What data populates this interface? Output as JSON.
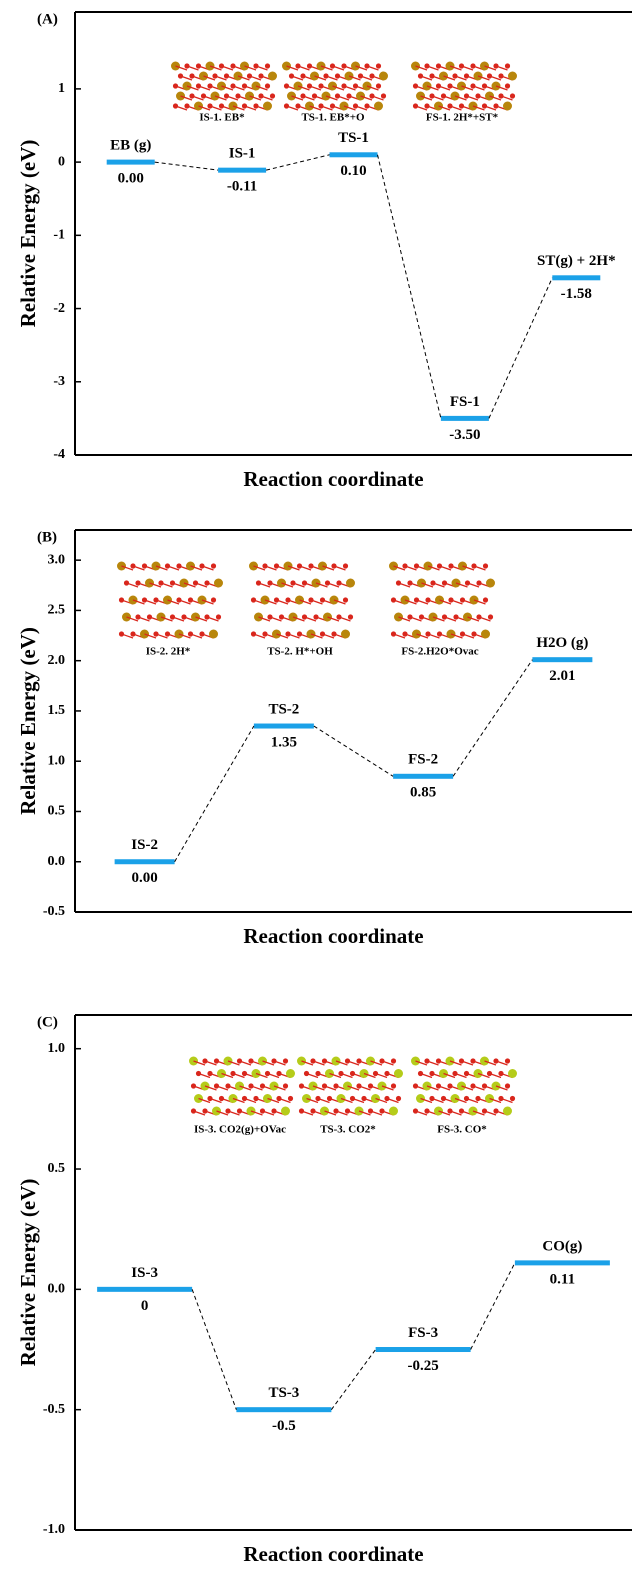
{
  "chart_data": [
    {
      "type": "energy",
      "panel_label": "(A)",
      "ylabel": "Relative Energy (eV)",
      "xlabel": "Reaction coordinate",
      "categories": [
        "EB (g)",
        "IS-1",
        "TS-1",
        "FS-1",
        "ST(g) + 2H*"
      ],
      "values": [
        0,
        -0.11,
        0.1,
        -3.5,
        -1.58
      ],
      "value_labels": [
        "0.00",
        "-0.11",
        "0.10",
        "-3.50",
        "-1.58"
      ],
      "color": "#1ba1e8",
      "ylim": [
        -4,
        2.05
      ],
      "yticks": [
        -4,
        -3,
        -2,
        -1,
        0,
        1
      ],
      "insets": [
        {
          "caption": "IS-1. EB*"
        },
        {
          "caption": "TS-1. EB*+O"
        },
        {
          "caption": "FS-1. 2H*+ST*"
        }
      ]
    },
    {
      "type": "energy",
      "panel_label": "(B)",
      "ylabel": "Relative Energy (eV)",
      "xlabel": "Reaction coordinate",
      "categories": [
        "IS-2",
        "TS-2",
        "FS-2",
        "H2O (g)"
      ],
      "values": [
        0,
        1.35,
        0.85,
        2.01
      ],
      "value_labels": [
        "0.00",
        "1.35",
        "0.85",
        "2.01"
      ],
      "color": "#1ba1e8",
      "ylim": [
        -0.5,
        3.3
      ],
      "yticks": [
        -0.5,
        {
          "value": 0,
          "label": "0.0"
        },
        0.5,
        {
          "value": 1,
          "label": "1.0"
        },
        1.5,
        {
          "value": 2,
          "label": "2.0"
        },
        2.5,
        {
          "value": 3,
          "label": "3.0"
        }
      ],
      "insets": [
        {
          "caption": "IS-2. 2H*"
        },
        {
          "caption": "TS-2. H*+OH"
        },
        {
          "caption": "FS-2.H2O*Ovac"
        }
      ]
    },
    {
      "type": "energy",
      "panel_label": "(C)",
      "ylabel": "Relative Energy (eV)",
      "xlabel": "Reaction coordinate",
      "categories": [
        "IS-3",
        "TS-3",
        "FS-3",
        "CO(g)"
      ],
      "values": [
        0,
        -0.5,
        -0.25,
        0.11
      ],
      "color": "#1ba1e8",
      "ylim": [
        -1,
        1.14
      ],
      "yticks": [
        {
          "value": -1,
          "label": "-1.0"
        },
        -0.5,
        {
          "value": 0,
          "label": "0.0"
        },
        0.5,
        {
          "value": 1,
          "label": "1.0"
        }
      ],
      "insets": [
        {
          "caption": "IS-3. CO2(g)+OVac"
        },
        {
          "caption": "TS-3. CO2*"
        },
        {
          "caption": "FS-3. CO*"
        }
      ]
    }
  ]
}
